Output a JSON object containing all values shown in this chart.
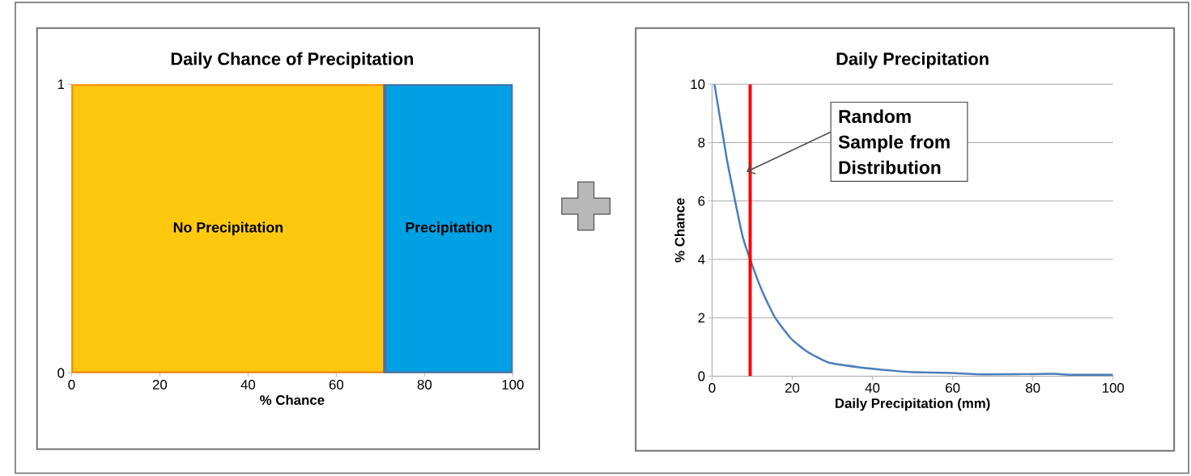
{
  "chart_data": [
    {
      "type": "area",
      "title": "Daily Chance of Precipitation",
      "xlabel": "% Chance",
      "xlim": [
        0,
        100
      ],
      "xticks": [
        0,
        20,
        40,
        60,
        80,
        100
      ],
      "ylim": [
        0,
        1
      ],
      "yticks": [
        0,
        1
      ],
      "series": [
        {
          "name": "No Precipitation",
          "color": "#fec80f",
          "x": [
            0,
            71
          ],
          "values": [
            1,
            1
          ]
        },
        {
          "name": "Precipitation",
          "color": "#00a0e4",
          "x": [
            71,
            100
          ],
          "values": [
            1,
            1
          ]
        }
      ]
    },
    {
      "type": "line",
      "title": "Daily Precipitation",
      "xlabel": "Daily Precipitation (mm)",
      "ylabel": "% Chance",
      "xlim": [
        0,
        100
      ],
      "xticks": [
        0,
        20,
        40,
        60,
        80,
        100
      ],
      "ylim": [
        0,
        10
      ],
      "yticks": [
        0,
        2,
        4,
        6,
        8,
        10
      ],
      "grid": "y",
      "x": [
        0.6,
        3.6,
        5.6,
        7.6,
        9.6,
        12.4,
        15.6,
        19.6,
        23.6,
        29,
        37,
        45,
        49.7,
        59.7,
        68.5,
        85,
        89,
        100
      ],
      "series": [
        {
          "color": "#4a7ebb",
          "values": [
            10,
            7.5,
            6.1,
            4.8,
            3.96,
            2.94,
            2.03,
            1.3,
            0.85,
            0.47,
            0.3,
            0.19,
            0.14,
            0.11,
            0.06,
            0.08,
            0.05,
            0.05
          ]
        }
      ],
      "ref_lines": [
        {
          "axis": "x",
          "value": 9.5,
          "color": "#ff0000"
        }
      ],
      "annotations": [
        {
          "text": "Random Sample from Distribution",
          "x": 8.6,
          "y": 7
        }
      ]
    }
  ]
}
